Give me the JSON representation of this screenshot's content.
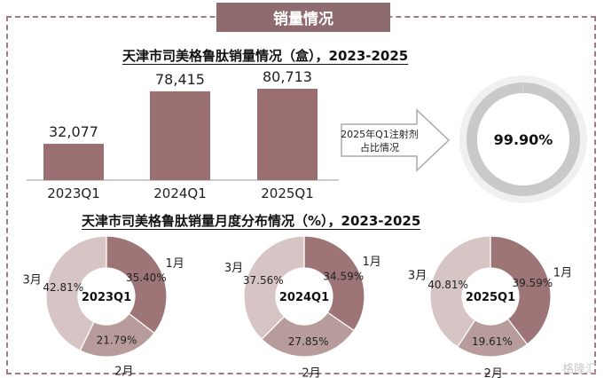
{
  "section_header": "销量情况",
  "chart_data": [
    {
      "type": "bar",
      "title": "天津市司美格鲁肽销量情况（盒），2023-2025",
      "categories": [
        "2023Q1",
        "2024Q1",
        "2025Q1"
      ],
      "values": [
        32077,
        78415,
        80713
      ],
      "value_labels": [
        "32,077",
        "78,415",
        "80,713"
      ],
      "color": "#9a6f71"
    },
    {
      "type": "pie",
      "subtype": "donut",
      "annotation": "2025年Q1注射剂占比情况",
      "center_label": "99.90%",
      "value": 99.9,
      "color": "#c9c9c9"
    },
    {
      "type": "pie",
      "subtype": "donut",
      "title": "天津市司美格鲁肽销量月度分布情况（%），2023-2025",
      "donuts": [
        {
          "center_label": "2023Q1",
          "slices": [
            {
              "label": "1月",
              "value": 35.4,
              "text": "35.40%"
            },
            {
              "label": "2月",
              "value": 21.79,
              "text": "21.79%"
            },
            {
              "label": "3月",
              "value": 42.81,
              "text": "42.81%"
            }
          ]
        },
        {
          "center_label": "2024Q1",
          "slices": [
            {
              "label": "1月",
              "value": 34.59,
              "text": "34.59%"
            },
            {
              "label": "2月",
              "value": 27.85,
              "text": "27.85%"
            },
            {
              "label": "3月",
              "value": 37.56,
              "text": "37.56%"
            }
          ]
        },
        {
          "center_label": "2025Q1",
          "slices": [
            {
              "label": "1月",
              "value": 39.59,
              "text": "39.59%"
            },
            {
              "label": "2月",
              "value": 19.61,
              "text": "19.61%"
            },
            {
              "label": "3月",
              "value": 40.81,
              "text": "40.81%"
            }
          ]
        }
      ],
      "colors": {
        "1月": "#9e7577",
        "2月": "#b89c9c",
        "3月": "#d7c5c5"
      }
    }
  ],
  "watermark": "格隆汇"
}
